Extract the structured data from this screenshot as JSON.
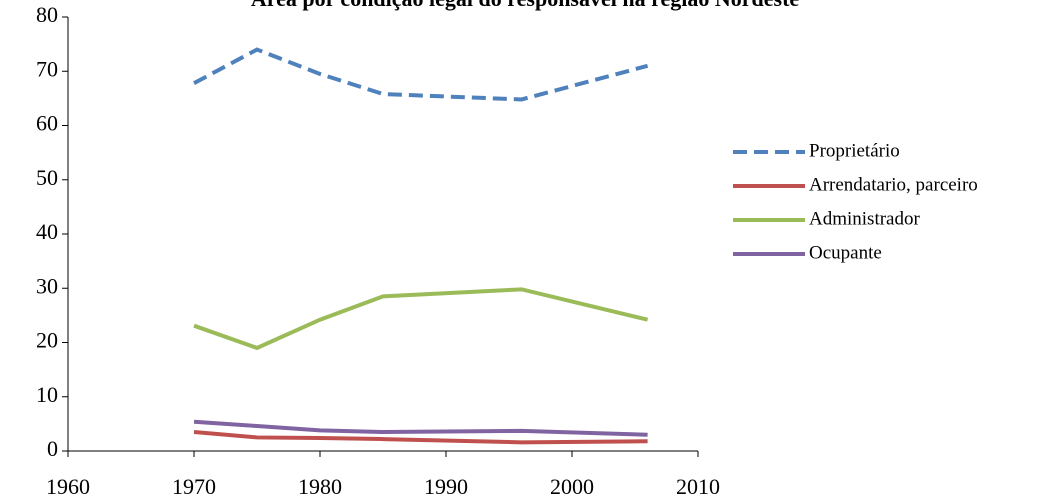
{
  "chart_data": {
    "type": "line",
    "title": "Área por condição legal do responsável na região Nordeste",
    "x": [
      1970,
      1975,
      1980,
      1985,
      1996,
      2006
    ],
    "series": [
      {
        "name": "Proprietário",
        "color": "#4f81bd",
        "style": "dashed",
        "values": [
          67.8,
          74,
          69.5,
          65.8,
          64.8,
          71
        ]
      },
      {
        "name": "Arrendatario, parceiro",
        "color": "#c0504d",
        "style": "solid",
        "values": [
          3.5,
          2.5,
          2.4,
          2.2,
          1.6,
          1.8
        ]
      },
      {
        "name": "Administrador",
        "color": "#9bbb59",
        "style": "solid",
        "values": [
          23.1,
          19,
          24.2,
          28.5,
          29.8,
          24.2
        ]
      },
      {
        "name": "Ocupante",
        "color": "#8064a2",
        "style": "solid",
        "values": [
          5.4,
          4.6,
          3.8,
          3.5,
          3.7,
          3.0
        ]
      }
    ],
    "xlim": [
      1960,
      2010
    ],
    "xticks": [
      1960,
      1970,
      1980,
      1990,
      2000,
      2010
    ],
    "ylim": [
      0,
      80
    ],
    "yticks": [
      0,
      10,
      20,
      30,
      40,
      50,
      60,
      70,
      80
    ],
    "grid": false,
    "legend": "right"
  }
}
